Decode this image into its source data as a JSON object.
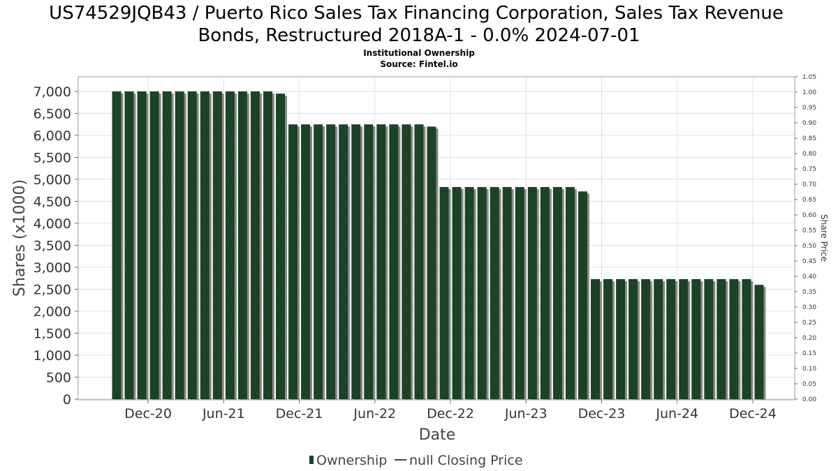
{
  "chart_data": {
    "type": "bar",
    "title_line1": "US74529JQB43 / Puerto Rico Sales Tax Financing Corporation, Sales Tax Revenue",
    "title_line2": "Bonds, Restructured 2018A-1 - 0.0% 2024-07-01",
    "subtitle_line1": "Institutional Ownership",
    "subtitle_line2": "Source: Fintel.io",
    "xlabel": "Date",
    "ylabel": "Shares (x1000)",
    "y2label": "Share Price",
    "ylim": [
      0,
      7000
    ],
    "y2lim": [
      0,
      1.05
    ],
    "yticks": [
      "0",
      "500",
      "1,000",
      "1,500",
      "2,000",
      "2,500",
      "3,000",
      "3,500",
      "4,000",
      "4,500",
      "5,000",
      "5,500",
      "6,000",
      "6,500",
      "7,000"
    ],
    "y2ticks": [
      "0.00",
      "0.05",
      "0.10",
      "0.15",
      "0.20",
      "0.25",
      "0.30",
      "0.35",
      "0.40",
      "0.45",
      "0.50",
      "0.55",
      "0.60",
      "0.65",
      "0.70",
      "0.75",
      "0.80",
      "0.85",
      "0.90",
      "0.95",
      "1.00",
      "1.05"
    ],
    "xticks": [
      {
        "label": "Dec-20",
        "index": 2.5
      },
      {
        "label": "Jun-21",
        "index": 8.5
      },
      {
        "label": "Dec-21",
        "index": 14.5
      },
      {
        "label": "Jun-22",
        "index": 20.5
      },
      {
        "label": "Dec-22",
        "index": 26.5
      },
      {
        "label": "Jun-23",
        "index": 32.5
      },
      {
        "label": "Dec-23",
        "index": 38.5
      },
      {
        "label": "Jun-24",
        "index": 44.5
      },
      {
        "label": "Dec-24",
        "index": 50.5
      }
    ],
    "series": [
      {
        "name": "Ownership",
        "color": "#1c4228",
        "values": [
          7000,
          7000,
          7000,
          7000,
          7000,
          7000,
          7000,
          7000,
          7000,
          7000,
          7000,
          7000,
          7000,
          6950,
          6250,
          6250,
          6250,
          6250,
          6250,
          6250,
          6250,
          6250,
          6250,
          6250,
          6250,
          6200,
          4825,
          4825,
          4825,
          4825,
          4825,
          4825,
          4825,
          4825,
          4825,
          4825,
          4825,
          4725,
          2730,
          2730,
          2730,
          2730,
          2730,
          2730,
          2730,
          2730,
          2730,
          2730,
          2730,
          2730,
          2730,
          2600
        ]
      }
    ],
    "legend": {
      "placement": "bottom-center",
      "items": [
        {
          "label": "Ownership",
          "marker": "bar",
          "color": "#1c4228"
        },
        {
          "label": "null Closing Price",
          "marker": "line",
          "color": "#444444"
        }
      ]
    }
  }
}
